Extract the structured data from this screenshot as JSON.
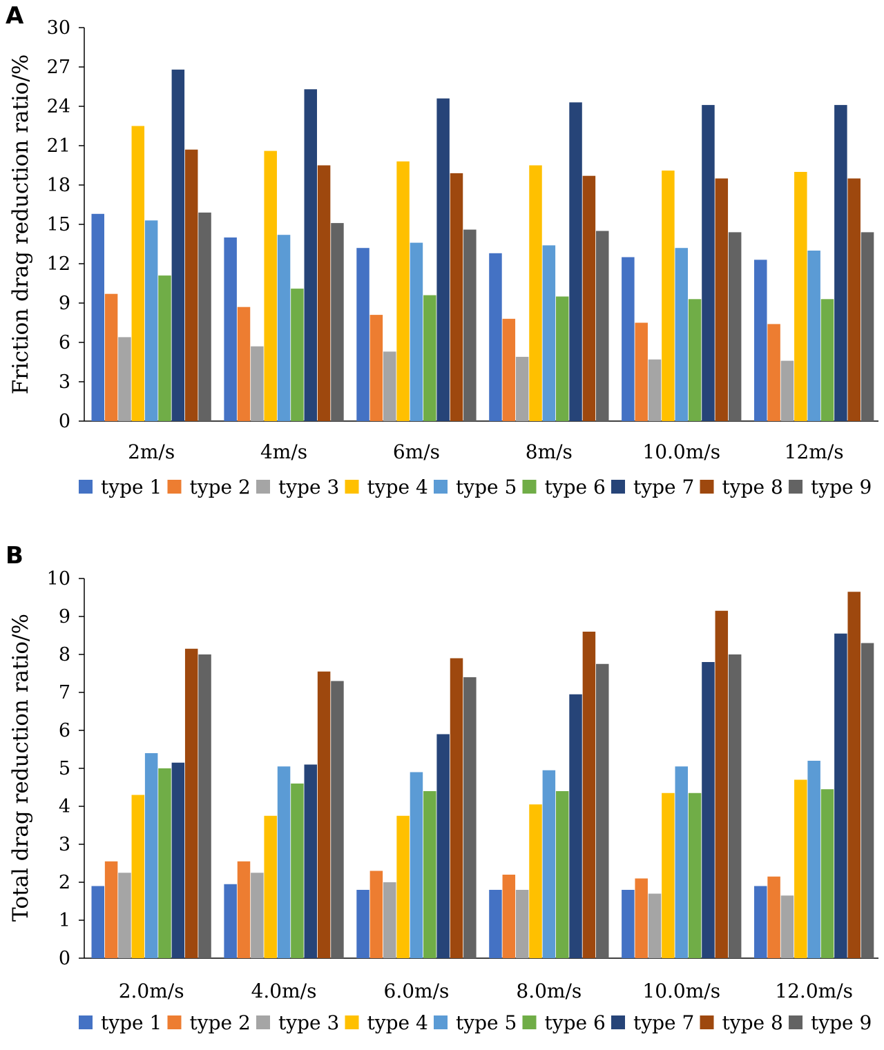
{
  "chart_data": [
    {
      "panel": "A",
      "type": "bar",
      "ylabel": "Friction drag reduction ratio/%",
      "ylim": [
        0,
        30
      ],
      "yticks": [
        0,
        3,
        6,
        9,
        12,
        15,
        18,
        21,
        24,
        27,
        30
      ],
      "categories": [
        "2m/s",
        "4m/s",
        "6m/s",
        "8m/s",
        "10.0m/s",
        "12m/s"
      ],
      "series": [
        {
          "name": "type 1",
          "color": "#4472C4",
          "values": [
            15.8,
            14.0,
            13.2,
            12.8,
            12.5,
            12.3
          ]
        },
        {
          "name": "type 2",
          "color": "#ED7D31",
          "values": [
            9.7,
            8.7,
            8.1,
            7.8,
            7.5,
            7.4
          ]
        },
        {
          "name": "type 3",
          "color": "#A5A5A5",
          "values": [
            6.4,
            5.7,
            5.3,
            4.9,
            4.7,
            4.6
          ]
        },
        {
          "name": "type 4",
          "color": "#FFC000",
          "values": [
            22.5,
            20.6,
            19.8,
            19.5,
            19.1,
            19.0
          ]
        },
        {
          "name": "type 5",
          "color": "#5B9BD5",
          "values": [
            15.3,
            14.2,
            13.6,
            13.4,
            13.2,
            13.0
          ]
        },
        {
          "name": "type 6",
          "color": "#70AD47",
          "values": [
            11.1,
            10.1,
            9.6,
            9.5,
            9.3,
            9.3
          ]
        },
        {
          "name": "type 7",
          "color": "#264478",
          "values": [
            26.8,
            25.3,
            24.6,
            24.3,
            24.1,
            24.1
          ]
        },
        {
          "name": "type 8",
          "color": "#9E480E",
          "values": [
            20.7,
            19.5,
            18.9,
            18.7,
            18.5,
            18.5
          ]
        },
        {
          "name": "type 9",
          "color": "#636363",
          "values": [
            15.9,
            15.1,
            14.6,
            14.5,
            14.4,
            14.4
          ]
        }
      ]
    },
    {
      "panel": "B",
      "type": "bar",
      "ylabel": "Total drag reduction ratio/%",
      "ylim": [
        0,
        10
      ],
      "yticks": [
        0,
        1,
        2,
        3,
        4,
        5,
        6,
        7,
        8,
        9,
        10
      ],
      "categories": [
        "2.0m/s",
        "4.0m/s",
        "6.0m/s",
        "8.0m/s",
        "10.0m/s",
        "12.0m/s"
      ],
      "series": [
        {
          "name": "type 1",
          "color": "#4472C4",
          "values": [
            1.9,
            1.95,
            1.8,
            1.8,
            1.8,
            1.9
          ]
        },
        {
          "name": "type 2",
          "color": "#ED7D31",
          "values": [
            2.55,
            2.55,
            2.3,
            2.2,
            2.1,
            2.15
          ]
        },
        {
          "name": "type 3",
          "color": "#A5A5A5",
          "values": [
            2.25,
            2.25,
            2.0,
            1.8,
            1.7,
            1.65
          ]
        },
        {
          "name": "type 4",
          "color": "#FFC000",
          "values": [
            4.3,
            3.75,
            3.75,
            4.05,
            4.35,
            4.7
          ]
        },
        {
          "name": "type 5",
          "color": "#5B9BD5",
          "values": [
            5.4,
            5.05,
            4.9,
            4.95,
            5.05,
            5.2
          ]
        },
        {
          "name": "type 6",
          "color": "#70AD47",
          "values": [
            5.0,
            4.6,
            4.4,
            4.4,
            4.35,
            4.45
          ]
        },
        {
          "name": "type 7",
          "color": "#264478",
          "values": [
            5.15,
            5.1,
            5.9,
            6.95,
            7.8,
            8.55
          ]
        },
        {
          "name": "type 8",
          "color": "#9E480E",
          "values": [
            8.15,
            7.55,
            7.9,
            8.6,
            9.15,
            9.65
          ]
        },
        {
          "name": "type 9",
          "color": "#636363",
          "values": [
            8.0,
            7.3,
            7.4,
            7.75,
            8.0,
            8.3
          ]
        }
      ]
    }
  ]
}
